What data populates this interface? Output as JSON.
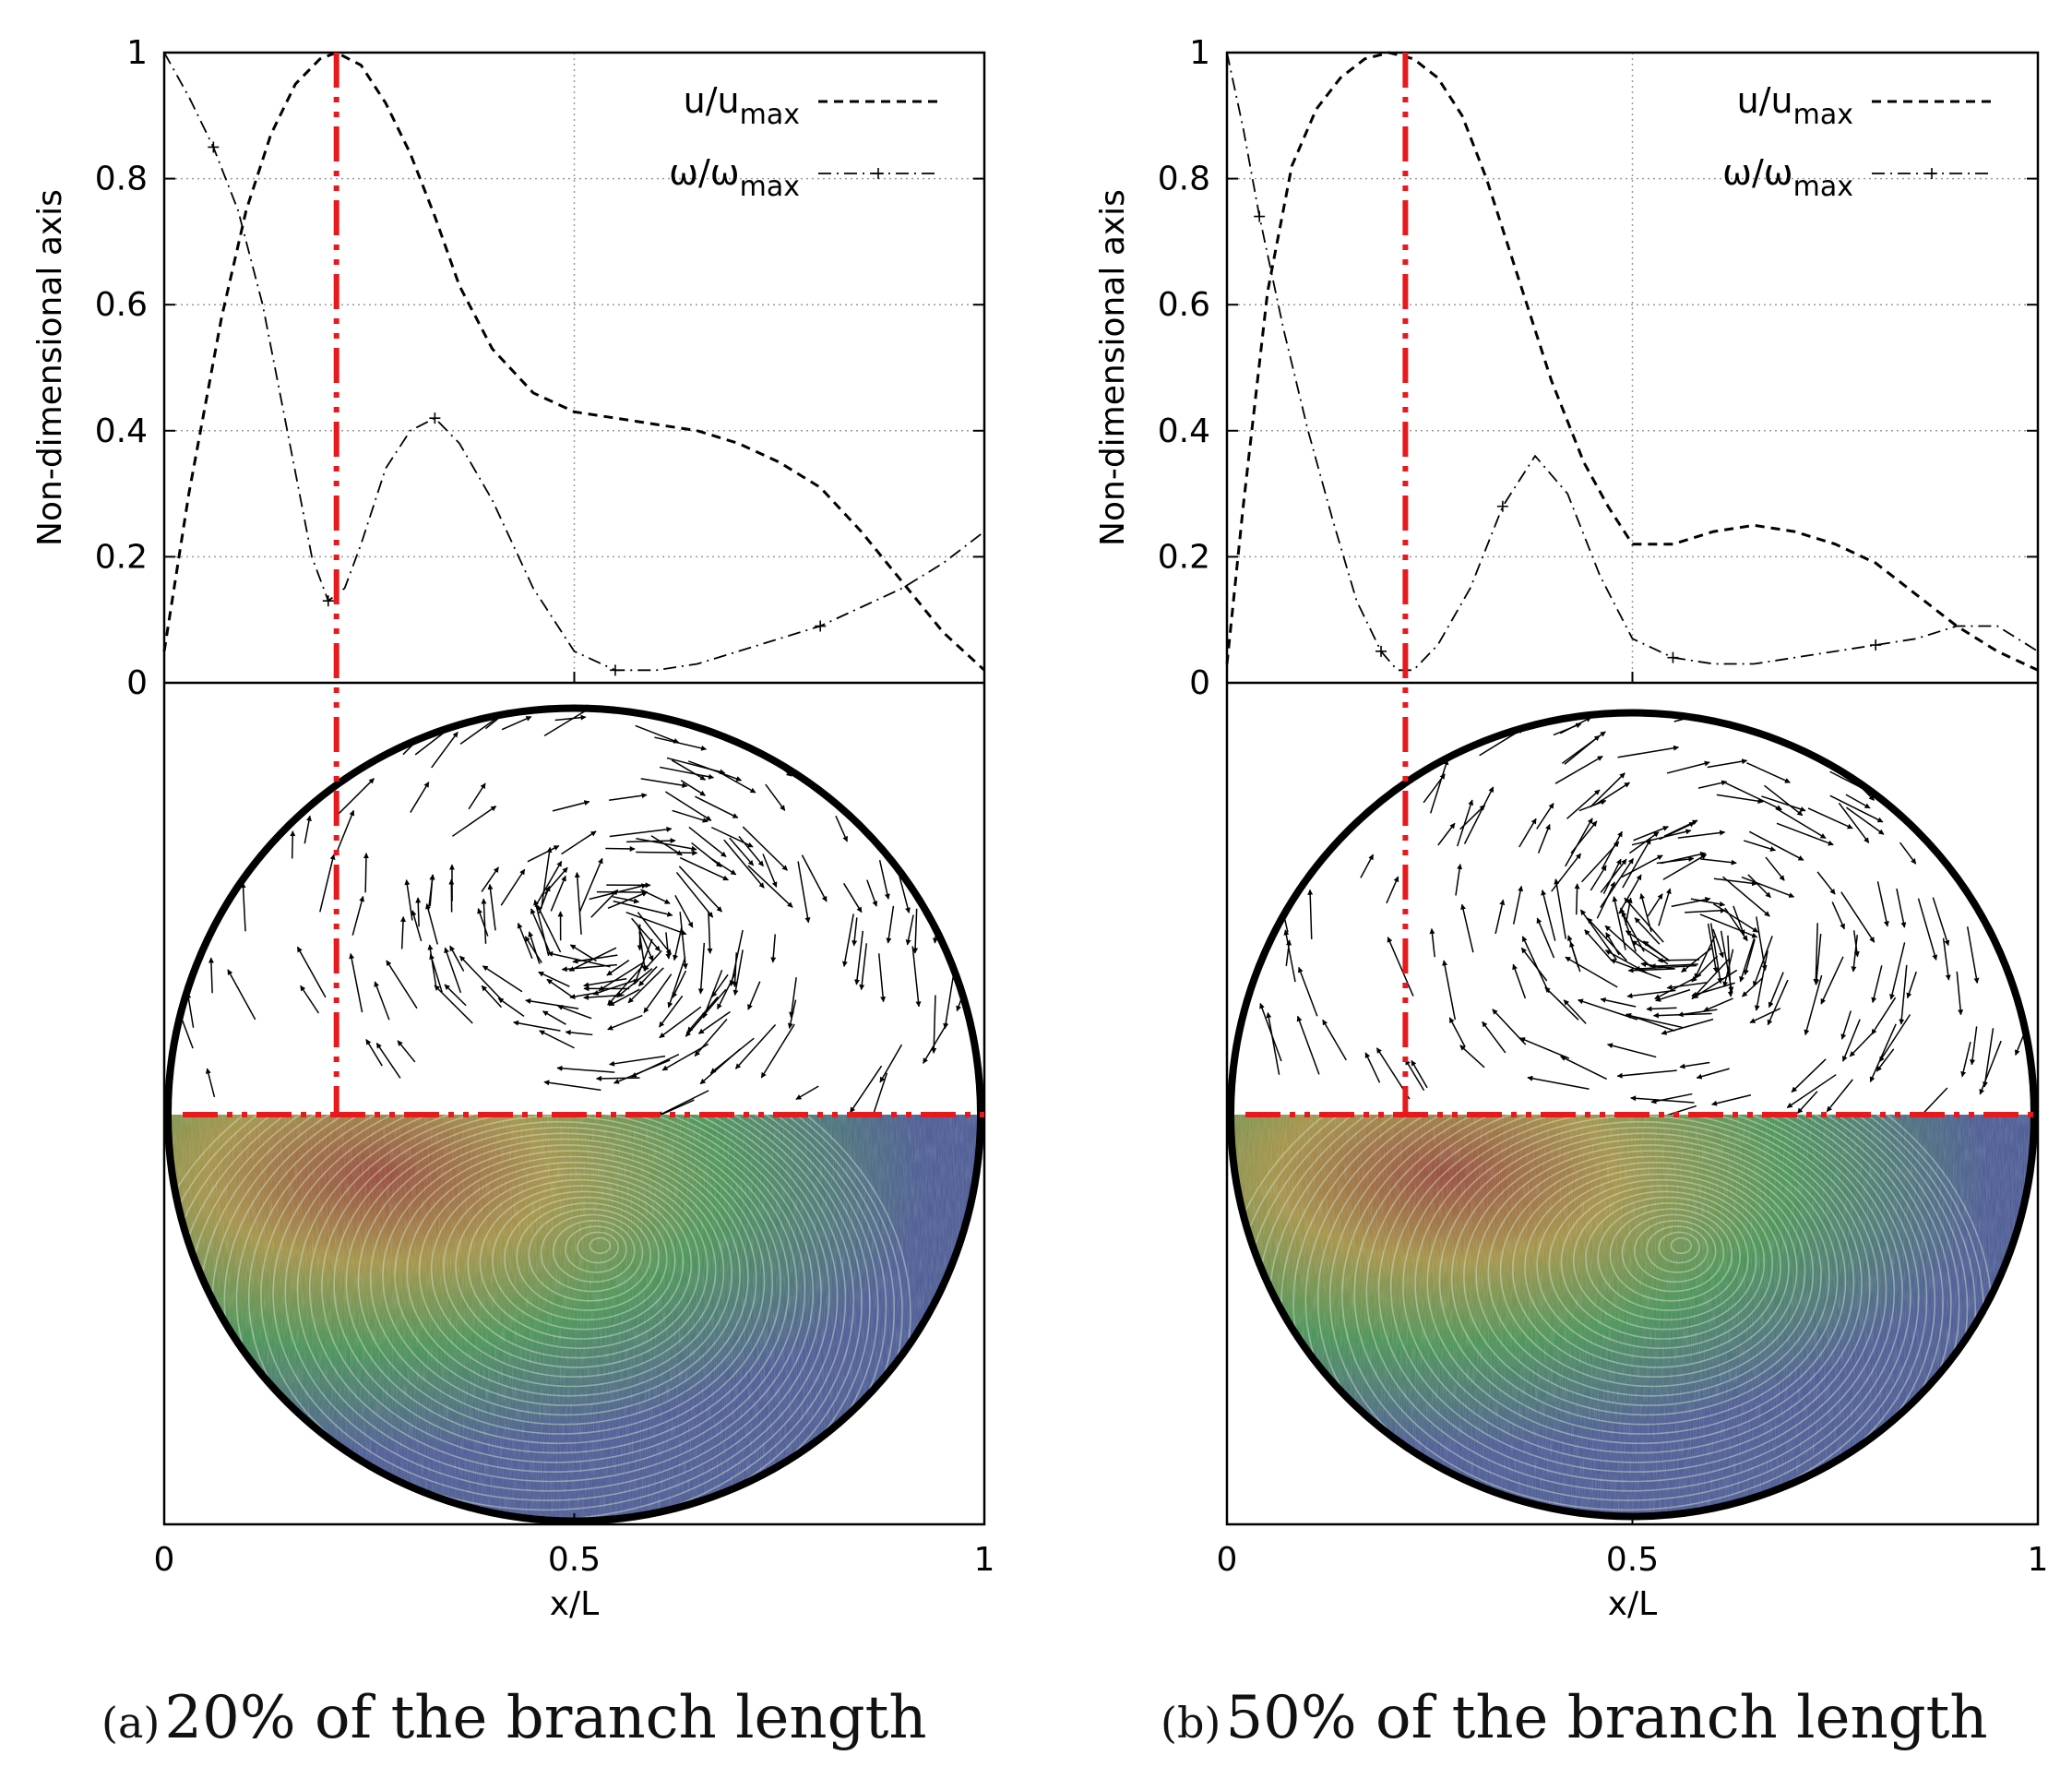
{
  "colors": {
    "background": "#ffffff",
    "axis": "#000000",
    "grid": "#9a9a9a",
    "series_line": "#000000",
    "marker_red": "#e8191c",
    "circle_edge": "#000000",
    "field_low": "#3f4f8c",
    "field_mid": "#3c8a4a",
    "field_high": "#8e3c2c",
    "field_mid2": "#9c8a3a"
  },
  "icons": {
    "vector_arrow": "arrow-glyph",
    "streamline_field": "lic-texture"
  },
  "panels": [
    {
      "id": "a",
      "caption_tag": "(a)",
      "caption_text": "20% of the branch length",
      "chart_data": {
        "type": "line",
        "xlabel": "x/L",
        "ylabel": "Non-dimensional axis",
        "xlim": [
          0,
          1
        ],
        "ylim": [
          0,
          1
        ],
        "xticks": [
          "0",
          "0.5",
          "1"
        ],
        "yticks": [
          "0",
          "0.2",
          "0.4",
          "0.6",
          "0.8",
          "1"
        ],
        "grid": true,
        "legend_position": "top-right",
        "marker_x": 0.21,
        "series": [
          {
            "name_base": "u/u",
            "name_sub": "max",
            "style": "dashed",
            "x": [
              0,
              0.03,
              0.07,
              0.1,
              0.13,
              0.16,
              0.19,
              0.21,
              0.24,
              0.27,
              0.3,
              0.33,
              0.36,
              0.4,
              0.45,
              0.5,
              0.55,
              0.6,
              0.65,
              0.7,
              0.75,
              0.8,
              0.85,
              0.9,
              0.95,
              1
            ],
            "y": [
              0.05,
              0.3,
              0.58,
              0.75,
              0.87,
              0.95,
              0.99,
              1.0,
              0.98,
              0.92,
              0.84,
              0.74,
              0.63,
              0.53,
              0.46,
              0.43,
              0.42,
              0.41,
              0.4,
              0.38,
              0.35,
              0.31,
              0.24,
              0.16,
              0.08,
              0.02
            ]
          },
          {
            "name_base": "ω/ω",
            "name_sub": "max",
            "style": "dashdot",
            "x": [
              0,
              0.03,
              0.06,
              0.09,
              0.12,
              0.15,
              0.18,
              0.2,
              0.22,
              0.24,
              0.27,
              0.3,
              0.33,
              0.36,
              0.4,
              0.45,
              0.5,
              0.55,
              0.6,
              0.65,
              0.7,
              0.75,
              0.8,
              0.85,
              0.9,
              0.95,
              1
            ],
            "y": [
              1.0,
              0.93,
              0.85,
              0.75,
              0.6,
              0.4,
              0.2,
              0.13,
              0.15,
              0.22,
              0.34,
              0.4,
              0.42,
              0.38,
              0.29,
              0.15,
              0.05,
              0.02,
              0.02,
              0.03,
              0.05,
              0.07,
              0.09,
              0.12,
              0.15,
              0.19,
              0.24
            ]
          }
        ]
      }
    },
    {
      "id": "b",
      "caption_tag": "(b)",
      "caption_text": "50% of the branch length",
      "chart_data": {
        "type": "line",
        "xlabel": "x/L",
        "ylabel": "Non-dimensional axis",
        "xlim": [
          0,
          1
        ],
        "ylim": [
          0,
          1
        ],
        "xticks": [
          "0",
          "0.5",
          "1"
        ],
        "yticks": [
          "0",
          "0.2",
          "0.4",
          "0.6",
          "0.8",
          "1"
        ],
        "grid": true,
        "legend_position": "top-right",
        "marker_x": 0.22,
        "series": [
          {
            "name_base": "u/u",
            "name_sub": "max",
            "style": "dashed",
            "x": [
              0,
              0.02,
              0.05,
              0.08,
              0.11,
              0.14,
              0.17,
              0.2,
              0.23,
              0.26,
              0.29,
              0.32,
              0.36,
              0.4,
              0.44,
              0.47,
              0.5,
              0.55,
              0.6,
              0.65,
              0.7,
              0.75,
              0.8,
              0.85,
              0.9,
              0.95,
              1
            ],
            "y": [
              0.03,
              0.28,
              0.62,
              0.82,
              0.91,
              0.96,
              0.99,
              1.0,
              0.99,
              0.96,
              0.9,
              0.8,
              0.64,
              0.48,
              0.35,
              0.28,
              0.22,
              0.22,
              0.24,
              0.25,
              0.24,
              0.22,
              0.19,
              0.14,
              0.09,
              0.05,
              0.02
            ]
          },
          {
            "name_base": "ω/ω",
            "name_sub": "max",
            "style": "dashdot",
            "x": [
              0,
              0.02,
              0.04,
              0.07,
              0.1,
              0.13,
              0.16,
              0.19,
              0.21,
              0.23,
              0.26,
              0.3,
              0.34,
              0.38,
              0.42,
              0.46,
              0.5,
              0.55,
              0.6,
              0.65,
              0.7,
              0.75,
              0.8,
              0.85,
              0.9,
              0.95,
              1
            ],
            "y": [
              1.0,
              0.88,
              0.74,
              0.56,
              0.4,
              0.26,
              0.13,
              0.05,
              0.02,
              0.02,
              0.06,
              0.15,
              0.28,
              0.36,
              0.3,
              0.17,
              0.07,
              0.04,
              0.03,
              0.03,
              0.04,
              0.05,
              0.06,
              0.07,
              0.09,
              0.09,
              0.05
            ]
          }
        ]
      }
    }
  ]
}
